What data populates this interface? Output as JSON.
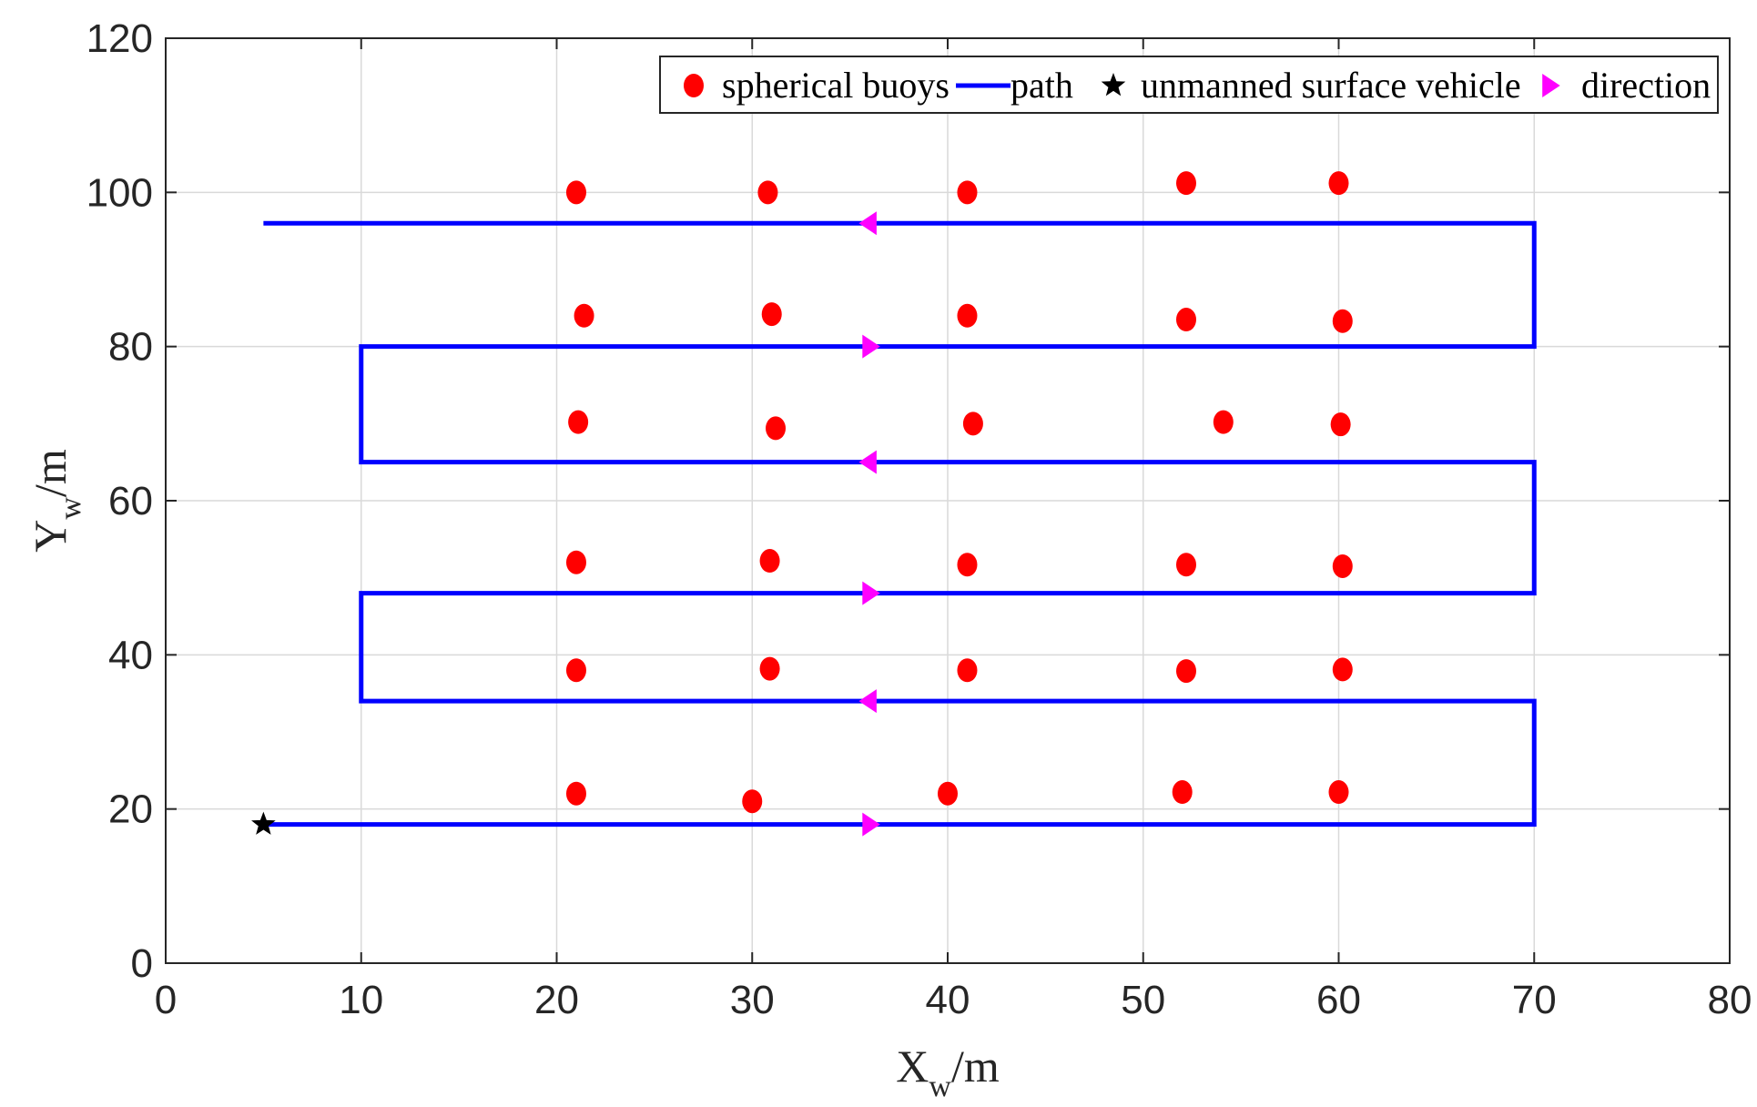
{
  "chart_data": {
    "type": "scatter",
    "title": "",
    "xlabel": {
      "main": "X",
      "sub": "w",
      "suffix": "/m"
    },
    "ylabel": {
      "main": "Y",
      "sub": "w",
      "suffix": "/m"
    },
    "xlim": [
      0,
      80
    ],
    "ylim": [
      0,
      120
    ],
    "xticks": [
      0,
      10,
      20,
      30,
      40,
      50,
      60,
      70,
      80
    ],
    "yticks": [
      0,
      20,
      40,
      60,
      80,
      100,
      120
    ],
    "grid": true,
    "legend": {
      "position": "top-right",
      "entries": [
        {
          "label": "spherical buoys",
          "marker": "circle",
          "color": "#ff0000"
        },
        {
          "label": "path",
          "marker": "line",
          "color": "#0000ff"
        },
        {
          "label": "unmanned surface vehicle",
          "marker": "star",
          "color": "#000000"
        },
        {
          "label": "direction",
          "marker": "triangle-right",
          "color": "#ff00ff"
        }
      ]
    },
    "series": [
      {
        "name": "spherical buoys",
        "color": "#ff0000",
        "points": [
          [
            21,
            100
          ],
          [
            30.8,
            100
          ],
          [
            41,
            100
          ],
          [
            52.2,
            101.2
          ],
          [
            60,
            101.2
          ],
          [
            21.4,
            84
          ],
          [
            31,
            84.2
          ],
          [
            41,
            84
          ],
          [
            52.2,
            83.5
          ],
          [
            60.2,
            83.3
          ],
          [
            21.1,
            70.2
          ],
          [
            31.2,
            69.4
          ],
          [
            41.3,
            70
          ],
          [
            54.1,
            70.2
          ],
          [
            60.1,
            69.9
          ],
          [
            21,
            52
          ],
          [
            30.9,
            52.2
          ],
          [
            41,
            51.7
          ],
          [
            52.2,
            51.7
          ],
          [
            60.2,
            51.5
          ],
          [
            21,
            38
          ],
          [
            30.9,
            38.2
          ],
          [
            41,
            38
          ],
          [
            52.2,
            37.9
          ],
          [
            60.2,
            38.1
          ],
          [
            21,
            22
          ],
          [
            30,
            21
          ],
          [
            40,
            22
          ],
          [
            52,
            22.2
          ],
          [
            60,
            22.2
          ]
        ]
      },
      {
        "name": "path",
        "color": "#0000ff",
        "points": [
          [
            5,
            18
          ],
          [
            70,
            18
          ],
          [
            70,
            34
          ],
          [
            10,
            34
          ],
          [
            10,
            48
          ],
          [
            70,
            48
          ],
          [
            70,
            65
          ],
          [
            10,
            65
          ],
          [
            10,
            80
          ],
          [
            70,
            80
          ],
          [
            70,
            96
          ],
          [
            5,
            96
          ]
        ]
      },
      {
        "name": "unmanned surface vehicle",
        "color": "#000000",
        "points": [
          [
            5,
            18
          ]
        ]
      },
      {
        "name": "direction",
        "color": "#ff00ff",
        "markers": [
          {
            "x": 36,
            "y": 18,
            "dir": "right"
          },
          {
            "x": 36,
            "y": 34,
            "dir": "left"
          },
          {
            "x": 36,
            "y": 48,
            "dir": "right"
          },
          {
            "x": 36,
            "y": 65,
            "dir": "left"
          },
          {
            "x": 36,
            "y": 80,
            "dir": "right"
          },
          {
            "x": 36,
            "y": 96,
            "dir": "left"
          }
        ]
      }
    ]
  }
}
